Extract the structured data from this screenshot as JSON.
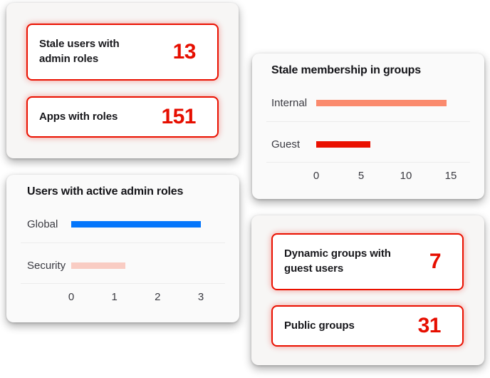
{
  "colors": {
    "page_background": "#ffffff",
    "kpi_card_background": "#f7f6f5",
    "chart_card_background": "#fafafa",
    "tile_border_red": "#ea1000",
    "kpi_number_red": "#e60e00",
    "title_text": "#141418",
    "label_text": "#3a3a41",
    "separator": "#ececec",
    "bar_salmon": "#fa8a6d",
    "bar_red": "#ea1000",
    "bar_blue": "#0476fb",
    "bar_pink": "#f9ccc3"
  },
  "kpi_cards": {
    "top_left": {
      "items": [
        {
          "label": "Stale users with admin roles",
          "value": "13"
        },
        {
          "label": "Apps with roles",
          "value": "151"
        }
      ]
    },
    "bottom_right": {
      "items": [
        {
          "label": "Dynamic groups with guest users",
          "value": "7"
        },
        {
          "label": "Public groups",
          "value": "31"
        }
      ]
    }
  },
  "chart_data": [
    {
      "type": "bar",
      "orientation": "horizontal",
      "title": "Stale membership in groups",
      "categories": [
        "Internal",
        "Guest"
      ],
      "values": [
        14.5,
        6
      ],
      "bar_colors": [
        "#fa8a6d",
        "#ea1000"
      ],
      "xlim": [
        0,
        15
      ],
      "xticks": [
        0,
        5,
        10,
        15
      ],
      "grid": false,
      "legend": "none"
    },
    {
      "type": "bar",
      "orientation": "horizontal",
      "title": "Users with active admin roles",
      "categories": [
        "Global",
        "Security"
      ],
      "values": [
        3,
        1.25
      ],
      "bar_colors": [
        "#0476fb",
        "#f9ccc3"
      ],
      "xlim": [
        0,
        3
      ],
      "xticks": [
        0,
        1,
        2,
        3
      ],
      "grid": false,
      "legend": "none"
    }
  ]
}
